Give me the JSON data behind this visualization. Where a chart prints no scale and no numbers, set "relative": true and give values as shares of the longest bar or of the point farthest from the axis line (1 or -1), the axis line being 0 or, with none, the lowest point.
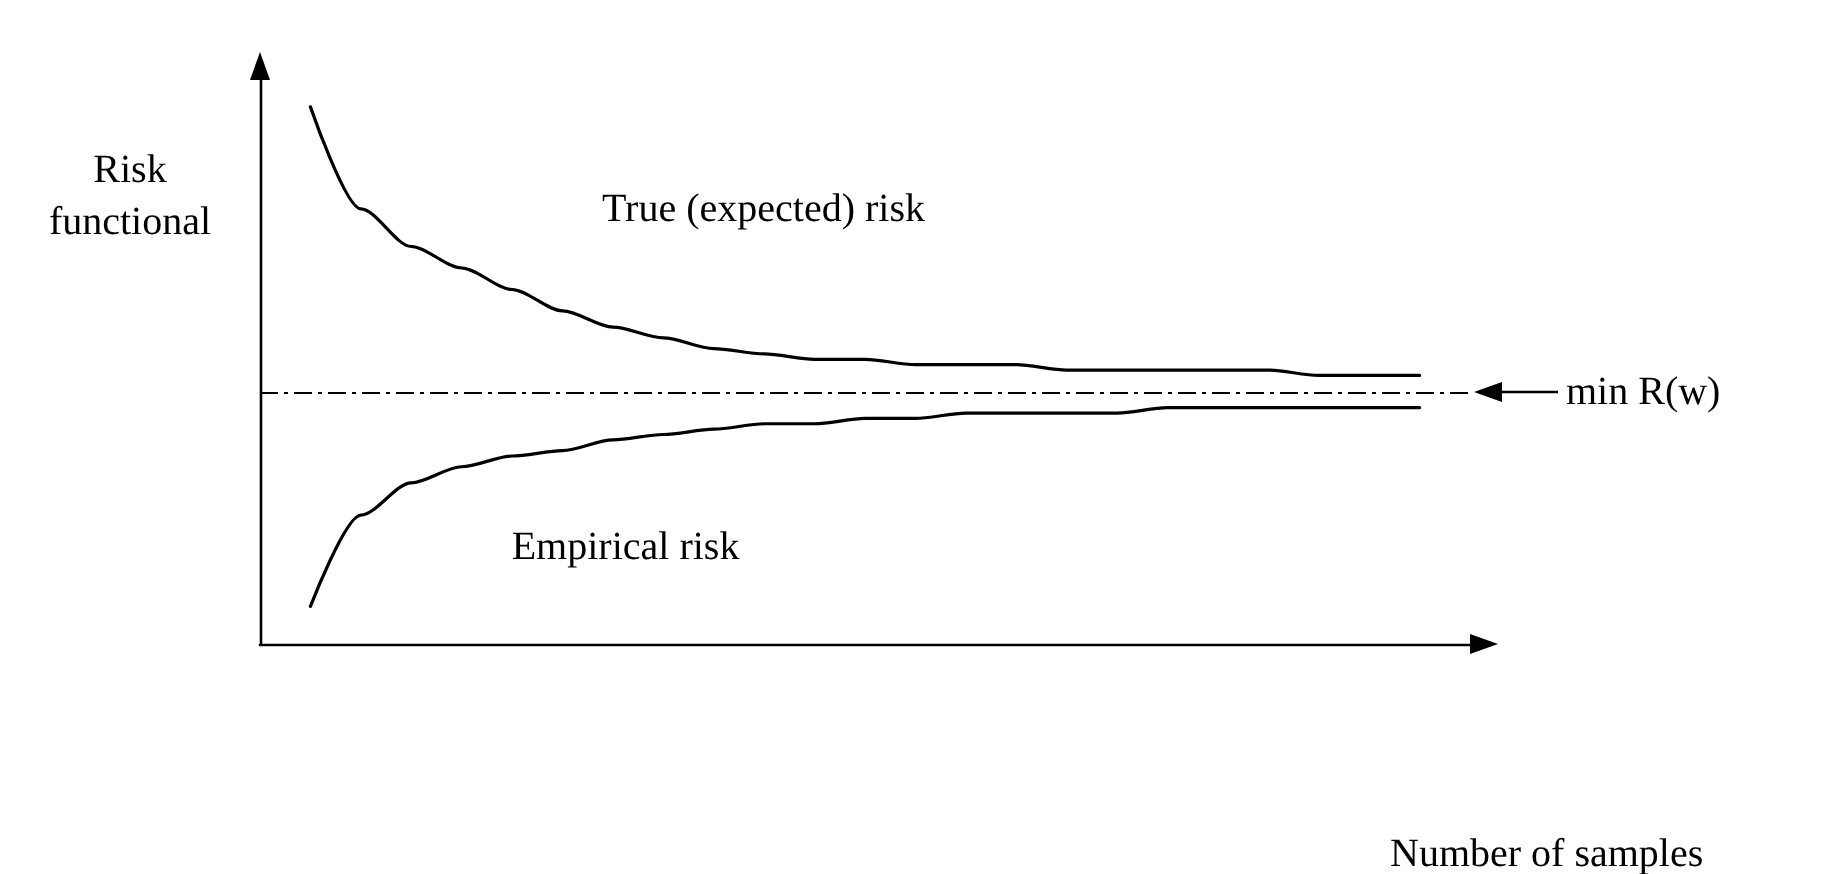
{
  "chart_data": {
    "type": "line",
    "relative": true,
    "xlabel": "Number of samples",
    "ylabel": "Risk functional",
    "categories": [
      null,
      null,
      null,
      null,
      null,
      null,
      null,
      null,
      null,
      null,
      null,
      null,
      null,
      null,
      null,
      null,
      null,
      null,
      null,
      null,
      null,
      null,
      null,
      null,
      null
    ],
    "series": [
      {
        "name": "True (expected) risk",
        "color": "#000000",
        "values": [
          null,
          1,
          0.81,
          0.74,
          0.7,
          0.66,
          0.62,
          0.59,
          0.57,
          0.55,
          0.54,
          0.53,
          0.53,
          0.52,
          0.52,
          0.52,
          0.51,
          0.51,
          0.51,
          0.51,
          0.51,
          0.5,
          0.5,
          0.5,
          null
        ]
      },
      {
        "name": "Empirical risk",
        "color": "#000000",
        "values": [
          null,
          0.07,
          0.24,
          0.3,
          0.33,
          0.35,
          0.36,
          0.38,
          0.39,
          0.4,
          0.41,
          0.41,
          0.42,
          0.42,
          0.43,
          0.43,
          0.43,
          0.43,
          0.44,
          0.44,
          0.44,
          0.44,
          0.44,
          0.44,
          null
        ]
      }
    ],
    "ref_lines": [
      {
        "axis": "y",
        "value": 0.47,
        "label": "min R(w)",
        "color": "#000000",
        "line_style": "dashdot"
      }
    ],
    "grid": false,
    "legend": false,
    "marker": "none",
    "line_style": "solid"
  }
}
